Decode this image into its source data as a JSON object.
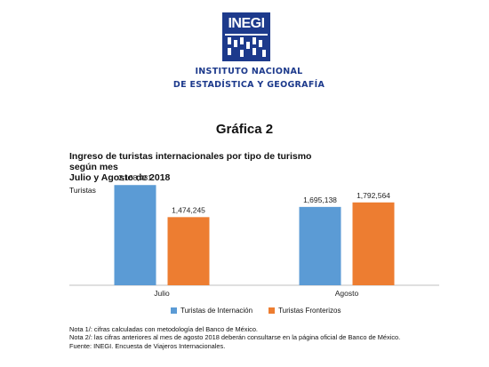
{
  "logo": {
    "word": "INEGI",
    "name_line1": "INSTITUTO NACIONAL",
    "name_line2": "DE ESTADÍSTICA Y GEOGRAFÍA"
  },
  "graph_title": "Gráfica 2",
  "colors": {
    "blue": "#5b9bd5",
    "orange": "#ed7d31",
    "navy": "#1d3a8c"
  },
  "chart_data": {
    "type": "bar",
    "title_line1": "Ingreso de turistas internacionales por tipo de turismo",
    "title_line2": "según mes",
    "title_line3": "Julio y Agosto de 2018",
    "unit_label": "Turistas",
    "categories": [
      "Julio",
      "Agosto"
    ],
    "series": [
      {
        "name": "Turistas de Internación",
        "values": [
          2168431,
          1695138
        ],
        "labels": [
          "2,168,431",
          "1,695,138"
        ]
      },
      {
        "name": "Turistas Fronterizos",
        "values": [
          1474245,
          1792564
        ],
        "labels": [
          "1,474,245",
          "1,792,564"
        ]
      }
    ],
    "ylim": [
      0,
      2500000
    ],
    "grid": false,
    "legend": "bottom"
  },
  "notes": {
    "line1": "Nota 1/: cifras calculadas  con metodología  del Banco de México.",
    "line2": "Nota 2/: las cifras anteriores al mes de agosto 2018 deberán consultarse  en la página oficial de Banco de México.",
    "line3": "Fuente: INEGI. Encuesta de Viajeros Internacionales."
  }
}
